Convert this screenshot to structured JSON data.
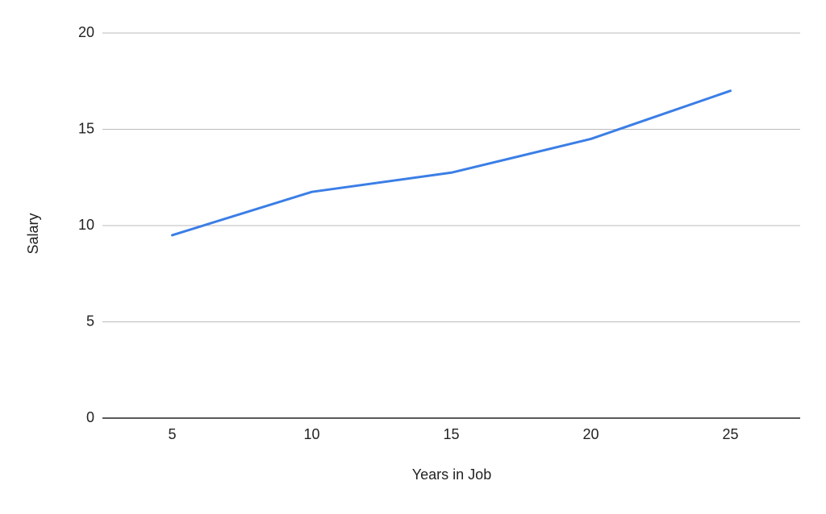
{
  "chart_data": {
    "type": "line",
    "x_label": "Years in Job",
    "y_label": "Salary",
    "categories": [
      "5",
      "10",
      "15",
      "20",
      "25"
    ],
    "series": [
      {
        "name": "Salary",
        "color": "#3b7ee6",
        "values": [
          9.5,
          11.75,
          12.75,
          14.5,
          17
        ]
      }
    ],
    "ylim": [
      0,
      20
    ],
    "yticks": [
      0,
      5,
      10,
      15,
      20
    ],
    "grid": true
  }
}
